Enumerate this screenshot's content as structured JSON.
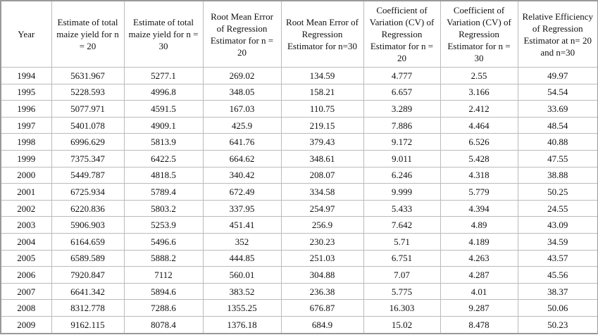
{
  "table": {
    "header": [
      "Year",
      "Estimate of total maize yield for n = 20",
      "Estimate of total maize yield for n = 30",
      "Root Mean Error of Regression Estimator for n = 20",
      "Root Mean Error of Regression Estimator for n=30",
      "Coefficient of Variation (CV) of Regression Estimator for n = 20",
      "Coefficient of Variation (CV) of Regression Estimator for n = 30",
      "Relative Efficiency of Regression Estimator at n= 20 and n=30"
    ],
    "rows": [
      [
        "1994",
        "5631.967",
        "5277.1",
        "269.02",
        "134.59",
        "4.777",
        "2.55",
        "49.97"
      ],
      [
        "1995",
        "5228.593",
        "4996.8",
        "348.05",
        "158.21",
        "6.657",
        "3.166",
        "54.54"
      ],
      [
        "1996",
        "5077.971",
        "4591.5",
        "167.03",
        "110.75",
        "3.289",
        "2.412",
        "33.69"
      ],
      [
        "1997",
        "5401.078",
        "4909.1",
        "425.9",
        "219.15",
        "7.886",
        "4.464",
        "48.54"
      ],
      [
        "1998",
        "6996.629",
        "5813.9",
        "641.76",
        "379.43",
        "9.172",
        "6.526",
        "40.88"
      ],
      [
        "1999",
        "7375.347",
        "6422.5",
        "664.62",
        "348.61",
        "9.011",
        "5.428",
        "47.55"
      ],
      [
        "2000",
        "5449.787",
        "4818.5",
        "340.42",
        "208.07",
        "6.246",
        "4.318",
        "38.88"
      ],
      [
        "2001",
        "6725.934",
        "5789.4",
        "672.49",
        "334.58",
        "9.999",
        "5.779",
        "50.25"
      ],
      [
        "2002",
        "6220.836",
        "5803.2",
        "337.95",
        "254.97",
        "5.433",
        "4.394",
        "24.55"
      ],
      [
        "2003",
        "5906.903",
        "5253.9",
        "451.41",
        "256.9",
        "7.642",
        "4.89",
        "43.09"
      ],
      [
        "2004",
        "6164.659",
        "5496.6",
        "352",
        "230.23",
        "5.71",
        "4.189",
        "34.59"
      ],
      [
        "2005",
        "6589.589",
        "5888.2",
        "444.85",
        "251.03",
        "6.751",
        "4.263",
        "43.57"
      ],
      [
        "2006",
        "7920.847",
        "7112",
        "560.01",
        "304.88",
        "7.07",
        "4.287",
        "45.56"
      ],
      [
        "2007",
        "6641.342",
        "5894.6",
        "383.52",
        "236.38",
        "5.775",
        "4.01",
        "38.37"
      ],
      [
        "2008",
        "8312.778",
        "7288.6",
        "1355.25",
        "676.87",
        "16.303",
        "9.287",
        "50.06"
      ],
      [
        "2009",
        "9162.115",
        "8078.4",
        "1376.18",
        "684.9",
        "15.02",
        "8.478",
        "50.23"
      ]
    ]
  }
}
